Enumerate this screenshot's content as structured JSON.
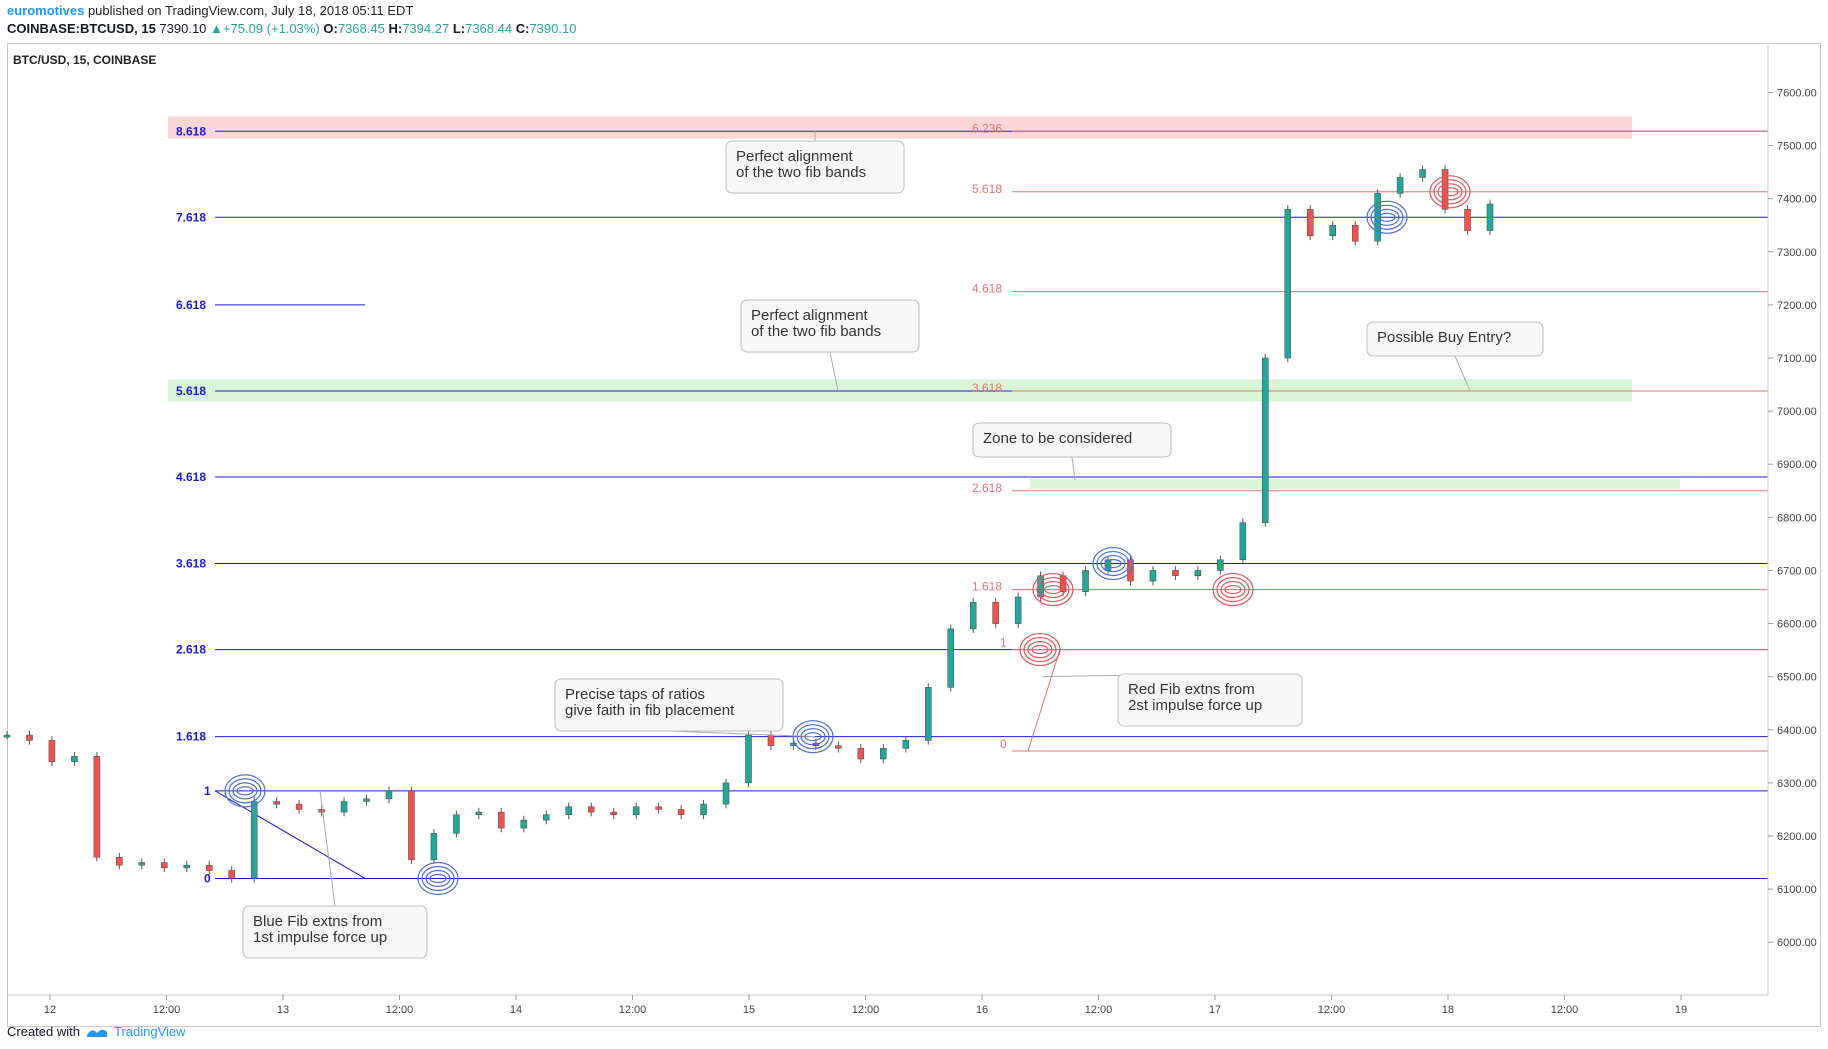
{
  "header": {
    "username": "euromotives",
    "published_text": "published on TradingView.com, July 18, 2018 05:11 EDT",
    "symbol": "COINBASE:BTCUSD, 15",
    "last": "7390.10",
    "change": "▲+75.09 (+1.03%)",
    "o_label": "O:",
    "o_val": "7368.45",
    "h_label": "H:",
    "h_val": "7394.27",
    "l_label": "L:",
    "l_val": "7368.44",
    "c_label": "C:",
    "c_val": "7390.10"
  },
  "footer": {
    "created_with": "Created with",
    "brand": "TradingView"
  },
  "chart_data": {
    "type": "candlestick",
    "title": "BTC/USD, 15, COINBASE",
    "ylim": [
      5910,
      7680
    ],
    "y_ticks": [
      "6000.00",
      "6100.00",
      "6200.00",
      "6300.00",
      "6400.00",
      "6500.00",
      "6600.00",
      "6700.00",
      "6800.00",
      "6900.00",
      "7000.00",
      "7100.00",
      "7200.00",
      "7300.00",
      "7400.00",
      "7500.00",
      "7600.00"
    ],
    "x_ticks": [
      "12",
      "12:00",
      "13",
      "12:00",
      "14",
      "12:00",
      "15",
      "12:00",
      "16",
      "12:00",
      "17",
      "12:00",
      "18",
      "12:00",
      "19"
    ],
    "price_path": [
      [
        0,
        6390
      ],
      [
        1,
        6380
      ],
      [
        2,
        6340
      ],
      [
        3,
        6350
      ],
      [
        4,
        6160
      ],
      [
        5,
        6145
      ],
      [
        6,
        6150
      ],
      [
        7,
        6140
      ],
      [
        8,
        6145
      ],
      [
        9,
        6135
      ],
      [
        10,
        6120
      ],
      [
        11,
        6265
      ],
      [
        12,
        6260
      ],
      [
        13,
        6250
      ],
      [
        14,
        6245
      ],
      [
        15,
        6265
      ],
      [
        16,
        6270
      ],
      [
        17,
        6285
      ],
      [
        18,
        6155
      ],
      [
        19,
        6205
      ],
      [
        20,
        6240
      ],
      [
        21,
        6245
      ],
      [
        22,
        6215
      ],
      [
        23,
        6230
      ],
      [
        24,
        6240
      ],
      [
        25,
        6255
      ],
      [
        26,
        6245
      ],
      [
        27,
        6240
      ],
      [
        28,
        6255
      ],
      [
        29,
        6250
      ],
      [
        30,
        6240
      ],
      [
        31,
        6260
      ],
      [
        32,
        6300
      ],
      [
        33,
        6390
      ],
      [
        34,
        6370
      ],
      [
        35,
        6375
      ],
      [
        36,
        6370
      ],
      [
        37,
        6365
      ],
      [
        38,
        6345
      ],
      [
        39,
        6365
      ],
      [
        40,
        6380
      ],
      [
        41,
        6480
      ],
      [
        42,
        6590
      ],
      [
        43,
        6640
      ],
      [
        44,
        6600
      ],
      [
        45,
        6650
      ],
      [
        46,
        6690
      ],
      [
        47,
        6660
      ],
      [
        48,
        6700
      ],
      [
        49,
        6720
      ],
      [
        50,
        6680
      ],
      [
        51,
        6700
      ],
      [
        52,
        6690
      ],
      [
        53,
        6700
      ],
      [
        54,
        6720
      ],
      [
        55,
        6790
      ],
      [
        56,
        7100
      ],
      [
        57,
        7380
      ],
      [
        58,
        7330
      ],
      [
        59,
        7350
      ],
      [
        60,
        7320
      ],
      [
        61,
        7410
      ],
      [
        62,
        7440
      ],
      [
        63,
        7455
      ],
      [
        64,
        7380
      ],
      [
        65,
        7340
      ],
      [
        66,
        7390
      ]
    ],
    "blue_fib_levels": [
      {
        "label": "0",
        "value": 6120
      },
      {
        "label": "1",
        "value": 6285
      },
      {
        "label": "1.618",
        "value": 6387
      },
      {
        "label": "2.618",
        "value": 6551
      },
      {
        "label": "3.618",
        "value": 6713
      },
      {
        "label": "4.618",
        "value": 6876
      },
      {
        "label": "5.618",
        "value": 7038
      },
      {
        "label": "6.618",
        "value": 7200
      },
      {
        "label": "7.618",
        "value": 7365
      },
      {
        "label": "8.618",
        "value": 7527
      }
    ],
    "red_fib_levels": [
      {
        "label": "0",
        "value": 6360
      },
      {
        "label": "1",
        "value": 6551
      },
      {
        "label": "1.618",
        "value": 6664
      },
      {
        "label": "2.618",
        "value": 6850
      },
      {
        "label": "3.618",
        "value": 7038
      },
      {
        "label": "4.618",
        "value": 7225
      },
      {
        "label": "5.618",
        "value": 7413
      },
      {
        "label": "6.236",
        "value": 7527
      }
    ],
    "zones": [
      {
        "name": "top",
        "range": [
          7513,
          7555
        ],
        "color": "#fbd7d7"
      },
      {
        "name": "mid",
        "range": [
          7018,
          7060
        ],
        "color": "#d8f5d8"
      },
      {
        "name": "consider",
        "range": [
          6853,
          6872
        ],
        "color": "#d8f5d8"
      }
    ],
    "annotations": [
      {
        "id": "a1",
        "lines": [
          "Perfect alignment",
          "of the two fib bands"
        ]
      },
      {
        "id": "a2",
        "lines": [
          "Perfect alignment",
          "of the two fib bands"
        ]
      },
      {
        "id": "a3",
        "lines": [
          "Possible Buy Entry?"
        ]
      },
      {
        "id": "a4",
        "lines": [
          "Zone to be considered"
        ]
      },
      {
        "id": "a5",
        "lines": [
          "Precise taps of ratios",
          "give faith in fib placement"
        ]
      },
      {
        "id": "a6",
        "lines": [
          "Red Fib extns  from",
          "2st impulse force up"
        ]
      },
      {
        "id": "a7",
        "lines": [
          "Blue Fib extns  from",
          "1st impulse force up"
        ]
      }
    ],
    "colors": {
      "blue": "#1a1ad6",
      "red": "#e57373",
      "up": "#26a69a",
      "down": "#ef5350"
    }
  }
}
